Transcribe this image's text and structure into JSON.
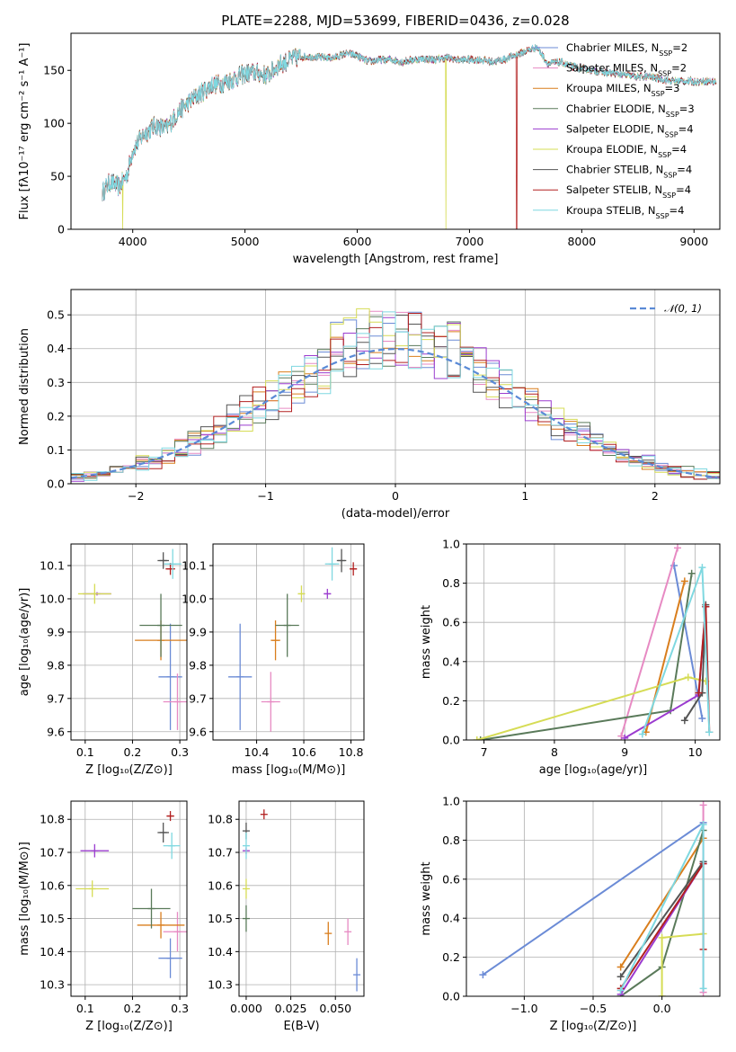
{
  "title": "PLATE=2288, MJD=53699, FIBERID=0436, z=0.028",
  "models": [
    {
      "name": "Chabrier MILES",
      "nssp": "2",
      "color": "#6b8bd6"
    },
    {
      "name": "Salpeter MILES",
      "nssp": "2",
      "color": "#e78ac3"
    },
    {
      "name": "Kroupa MILES",
      "nssp": "3",
      "color": "#d97e1d"
    },
    {
      "name": "Chabrier ELODIE",
      "nssp": "3",
      "color": "#5a7a5a"
    },
    {
      "name": "Salpeter ELODIE",
      "nssp": "4",
      "color": "#9b3ccf"
    },
    {
      "name": "Kroupa ELODIE",
      "nssp": "4",
      "color": "#d6dc55"
    },
    {
      "name": "Chabrier STELIB",
      "nssp": "4",
      "color": "#555555"
    },
    {
      "name": "Salpeter STELIB",
      "nssp": "4",
      "color": "#b22020"
    },
    {
      "name": "Kroupa STELIB",
      "nssp": "4",
      "color": "#7fd8e0"
    }
  ],
  "chart_data": [
    {
      "id": "spectrum",
      "type": "line",
      "xlabel": "wavelength [Angstrom, rest frame]",
      "ylabel": "Flux [fλ10⁻¹⁷ erg cm⁻² s⁻¹ A⁻¹]",
      "xlim": [
        3450,
        9230
      ],
      "ylim": [
        0,
        185
      ],
      "xticks": [
        4000,
        5000,
        6000,
        7000,
        8000,
        9000
      ],
      "yticks": [
        0,
        50,
        100,
        150
      ],
      "grid": false,
      "legend": "top-right",
      "continuum_points": [
        [
          3730,
          35
        ],
        [
          3800,
          45
        ],
        [
          3880,
          40
        ],
        [
          3950,
          52
        ],
        [
          4000,
          75
        ],
        [
          4100,
          90
        ],
        [
          4200,
          98
        ],
        [
          4300,
          95
        ],
        [
          4400,
          110
        ],
        [
          4500,
          120
        ],
        [
          4600,
          128
        ],
        [
          4700,
          136
        ],
        [
          4800,
          138
        ],
        [
          4900,
          142
        ],
        [
          5000,
          147
        ],
        [
          5100,
          148
        ],
        [
          5200,
          145
        ],
        [
          5300,
          155
        ],
        [
          5400,
          160
        ],
        [
          5500,
          163
        ],
        [
          5600,
          163
        ],
        [
          5700,
          162
        ],
        [
          5800,
          162
        ],
        [
          5900,
          166
        ],
        [
          6000,
          164
        ],
        [
          6100,
          158
        ],
        [
          6200,
          160
        ],
        [
          6300,
          160
        ],
        [
          6400,
          158
        ],
        [
          6500,
          160
        ],
        [
          6600,
          161
        ],
        [
          6700,
          160
        ],
        [
          6800,
          162
        ],
        [
          6900,
          160
        ],
        [
          7000,
          160
        ],
        [
          7100,
          160
        ],
        [
          7200,
          158
        ],
        [
          7300,
          160
        ],
        [
          7400,
          164
        ],
        [
          7500,
          168
        ],
        [
          7600,
          172
        ],
        [
          7700,
          156
        ],
        [
          7800,
          158
        ],
        [
          7900,
          154
        ],
        [
          8000,
          152
        ],
        [
          8100,
          150
        ],
        [
          8200,
          148
        ],
        [
          8300,
          147
        ],
        [
          8400,
          145
        ],
        [
          8500,
          144
        ],
        [
          8600,
          144
        ],
        [
          8700,
          142
        ],
        [
          8800,
          140
        ],
        [
          8900,
          140
        ],
        [
          9000,
          139
        ],
        [
          9100,
          140
        ],
        [
          9200,
          139
        ]
      ],
      "dropouts": [
        {
          "x": 3910,
          "color": "#d6dc55"
        },
        {
          "x": 6790,
          "color": "#d6dc55"
        },
        {
          "x": 7420,
          "color": "#b22020"
        }
      ]
    },
    {
      "id": "residual-hist",
      "type": "histogram",
      "xlabel": "(data-model)/error",
      "ylabel": "Normed distribution",
      "xlim": [
        -2.5,
        2.5
      ],
      "ylim": [
        0,
        0.575
      ],
      "xticks": [
        -2,
        -1,
        0,
        1,
        2
      ],
      "yticks": [
        0.0,
        0.1,
        0.2,
        0.3,
        0.4,
        0.5
      ],
      "bin_width": 0.1,
      "grid": true,
      "legend": "top-right",
      "legend_label": "𝒩(0, 1)",
      "reference_curve": {
        "mean": 0,
        "sigma": 1,
        "style": "dashed",
        "color": "#5a8ad6"
      }
    },
    {
      "id": "age-vs-Z",
      "type": "errorbar",
      "xlabel": "Z [log₁₀(Z/Z⊙)]",
      "ylabel": "age  [log₁₀(age/yr)]",
      "xlim": [
        0.07,
        0.315
      ],
      "ylim": [
        9.575,
        10.165
      ],
      "xticks": [
        0.1,
        0.2,
        0.3
      ],
      "yticks": [
        9.6,
        9.7,
        9.8,
        9.9,
        10.0,
        10.1
      ],
      "grid": true,
      "points": [
        {
          "x": 0.28,
          "y": 9.765,
          "xerr": 0.025,
          "yerr": 0.16,
          "color": "#6b8bd6"
        },
        {
          "x": 0.295,
          "y": 9.69,
          "xerr": 0.03,
          "yerr": 0.085,
          "color": "#e78ac3"
        },
        {
          "x": 0.26,
          "y": 9.875,
          "xerr": 0.055,
          "yerr": 0.06,
          "color": "#d97e1d"
        },
        {
          "x": 0.26,
          "y": 9.92,
          "xerr": 0.045,
          "yerr": 0.095,
          "color": "#5a7a5a"
        },
        {
          "x": 0.125,
          "y": 10.015,
          "xerr": 0.03,
          "yerr": 0.005,
          "color": "#9b3ccf"
        },
        {
          "x": 0.12,
          "y": 10.015,
          "xerr": 0.035,
          "yerr": 0.03,
          "color": "#d6dc55"
        },
        {
          "x": 0.265,
          "y": 10.115,
          "xerr": 0.012,
          "yerr": 0.025,
          "color": "#555555"
        },
        {
          "x": 0.28,
          "y": 10.09,
          "xerr": 0.01,
          "yerr": 0.018,
          "color": "#b22020"
        },
        {
          "x": 0.285,
          "y": 10.105,
          "xerr": 0.018,
          "yerr": 0.045,
          "color": "#7fd8e0"
        }
      ]
    },
    {
      "id": "age-vs-mass",
      "type": "errorbar",
      "xlabel": "mass [log₁₀(M/M⊙)]",
      "ylabel": "",
      "xlim": [
        10.215,
        10.855
      ],
      "ylim": [
        9.575,
        10.165
      ],
      "xticks": [
        10.4,
        10.6,
        10.8
      ],
      "yticks": [
        9.6,
        9.7,
        9.8,
        9.9,
        10.0,
        10.1
      ],
      "grid": true,
      "points": [
        {
          "x": 10.33,
          "y": 9.765,
          "xerr": 0.05,
          "yerr": 0.16,
          "color": "#6b8bd6"
        },
        {
          "x": 10.46,
          "y": 9.69,
          "xerr": 0.04,
          "yerr": 0.09,
          "color": "#e78ac3"
        },
        {
          "x": 10.48,
          "y": 9.875,
          "xerr": 0.02,
          "yerr": 0.06,
          "color": "#d97e1d"
        },
        {
          "x": 10.53,
          "y": 9.92,
          "xerr": 0.05,
          "yerr": 0.095,
          "color": "#5a7a5a"
        },
        {
          "x": 10.7,
          "y": 10.015,
          "xerr": 0.015,
          "yerr": 0.015,
          "color": "#9b3ccf"
        },
        {
          "x": 10.59,
          "y": 10.015,
          "xerr": 0.015,
          "yerr": 0.025,
          "color": "#d6dc55"
        },
        {
          "x": 10.76,
          "y": 10.115,
          "xerr": 0.02,
          "yerr": 0.035,
          "color": "#555555"
        },
        {
          "x": 10.81,
          "y": 10.09,
          "xerr": 0.015,
          "yerr": 0.02,
          "color": "#b22020"
        },
        {
          "x": 10.72,
          "y": 10.105,
          "xerr": 0.03,
          "yerr": 0.05,
          "color": "#7fd8e0"
        }
      ]
    },
    {
      "id": "massweight-vs-age",
      "type": "line",
      "xlabel": "age  [log₁₀(age/yr)]",
      "ylabel": "mass weight",
      "xlim": [
        6.75,
        10.35
      ],
      "ylim": [
        0,
        1.0
      ],
      "xticks": [
        7,
        8,
        9,
        10
      ],
      "yticks": [
        0.0,
        0.2,
        0.4,
        0.6,
        0.8,
        1.0
      ],
      "grid": true,
      "series": [
        {
          "color": "#6b8bd6",
          "points": [
            [
              9.7,
              0.89
            ],
            [
              10.1,
              0.11
            ]
          ]
        },
        {
          "color": "#e78ac3",
          "points": [
            [
              8.95,
              0.02
            ],
            [
              9.75,
              0.98
            ]
          ]
        },
        {
          "color": "#d97e1d",
          "points": [
            [
              9.3,
              0.04
            ],
            [
              9.85,
              0.81
            ]
          ]
        },
        {
          "color": "#5a7a5a",
          "points": [
            [
              6.95,
              0.0
            ],
            [
              9.65,
              0.15
            ],
            [
              9.95,
              0.85
            ]
          ]
        },
        {
          "color": "#9b3ccf",
          "points": [
            [
              9.0,
              0.01
            ],
            [
              10.05,
              0.23
            ],
            [
              10.15,
              0.68
            ]
          ]
        },
        {
          "color": "#d6dc55",
          "points": [
            [
              6.9,
              0.0
            ],
            [
              9.9,
              0.32
            ],
            [
              10.15,
              0.3
            ]
          ]
        },
        {
          "color": "#555555",
          "points": [
            [
              9.85,
              0.1
            ],
            [
              10.1,
              0.24
            ],
            [
              10.15,
              0.69
            ]
          ]
        },
        {
          "color": "#b22020",
          "points": [
            [
              10.05,
              0.24
            ],
            [
              10.15,
              0.68
            ],
            [
              10.2,
              0.04
            ]
          ]
        },
        {
          "color": "#7fd8e0",
          "points": [
            [
              9.25,
              0.03
            ],
            [
              10.1,
              0.88
            ],
            [
              10.2,
              0.04
            ]
          ]
        }
      ]
    },
    {
      "id": "mass-vs-Z",
      "type": "errorbar",
      "xlabel": "Z [log₁₀(Z/Z⊙)]",
      "ylabel": "mass [log₁₀(M/M⊙)]",
      "xlim": [
        0.07,
        0.315
      ],
      "ylim": [
        10.265,
        10.855
      ],
      "xticks": [
        0.1,
        0.2,
        0.3
      ],
      "yticks": [
        10.3,
        10.4,
        10.5,
        10.6,
        10.7,
        10.8
      ],
      "grid": true,
      "points": [
        {
          "x": 0.28,
          "y": 10.38,
          "xerr": 0.025,
          "yerr": 0.06,
          "color": "#6b8bd6"
        },
        {
          "x": 0.295,
          "y": 10.46,
          "xerr": 0.03,
          "yerr": 0.06,
          "color": "#e78ac3"
        },
        {
          "x": 0.26,
          "y": 10.48,
          "xerr": 0.05,
          "yerr": 0.04,
          "color": "#d97e1d"
        },
        {
          "x": 0.24,
          "y": 10.53,
          "xerr": 0.04,
          "yerr": 0.06,
          "color": "#5a7a5a"
        },
        {
          "x": 0.12,
          "y": 10.705,
          "xerr": 0.03,
          "yerr": 0.02,
          "color": "#9b3ccf"
        },
        {
          "x": 0.115,
          "y": 10.59,
          "xerr": 0.035,
          "yerr": 0.025,
          "color": "#d6dc55"
        },
        {
          "x": 0.265,
          "y": 10.76,
          "xerr": 0.012,
          "yerr": 0.03,
          "color": "#555555"
        },
        {
          "x": 0.28,
          "y": 10.81,
          "xerr": 0.008,
          "yerr": 0.015,
          "color": "#b22020"
        },
        {
          "x": 0.283,
          "y": 10.72,
          "xerr": 0.018,
          "yerr": 0.04,
          "color": "#7fd8e0"
        }
      ]
    },
    {
      "id": "mass-vs-ebv",
      "type": "errorbar",
      "xlabel": "E(B-V)",
      "ylabel": "",
      "xlim": [
        -0.004,
        0.066
      ],
      "ylim": [
        10.265,
        10.855
      ],
      "xticks": [
        0.0,
        0.025,
        0.05
      ],
      "yticks": [
        10.3,
        10.4,
        10.5,
        10.6,
        10.7,
        10.8
      ],
      "grid": true,
      "points": [
        {
          "x": 0.062,
          "y": 10.33,
          "xerr": 0,
          "yerr": 0.05,
          "color": "#6b8bd6"
        },
        {
          "x": 0.057,
          "y": 10.46,
          "xerr": 0,
          "yerr": 0.04,
          "color": "#e78ac3"
        },
        {
          "x": 0.046,
          "y": 10.455,
          "xerr": 0,
          "yerr": 0.035,
          "color": "#d97e1d"
        },
        {
          "x": 0.0,
          "y": 10.5,
          "xerr": 0,
          "yerr": 0.04,
          "color": "#5a7a5a"
        },
        {
          "x": 0.0,
          "y": 10.705,
          "xerr": 0,
          "yerr": 0.01,
          "color": "#9b3ccf"
        },
        {
          "x": 0.0,
          "y": 10.59,
          "xerr": 0,
          "yerr": 0.03,
          "color": "#d6dc55"
        },
        {
          "x": 0.0,
          "y": 10.765,
          "xerr": 0,
          "yerr": 0.025,
          "color": "#555555"
        },
        {
          "x": 0.01,
          "y": 10.815,
          "xerr": 0,
          "yerr": 0.015,
          "color": "#b22020"
        },
        {
          "x": 0.0,
          "y": 10.72,
          "xerr": 0,
          "yerr": 0.04,
          "color": "#7fd8e0"
        }
      ]
    },
    {
      "id": "massweight-vs-Z",
      "type": "line",
      "xlabel": "Z [log₁₀(Z/Z⊙)]",
      "ylabel": "mass weight",
      "xlim": [
        -1.42,
        0.42
      ],
      "ylim": [
        0,
        1.0
      ],
      "xticks": [
        -1.0,
        -0.5,
        0.0
      ],
      "yticks": [
        0.0,
        0.2,
        0.4,
        0.6,
        0.8,
        1.0
      ],
      "grid": true,
      "series": [
        {
          "color": "#6b8bd6",
          "points": [
            [
              -1.3,
              0.11
            ],
            [
              0.3,
              0.89
            ]
          ]
        },
        {
          "color": "#e78ac3",
          "points": [
            [
              0.3,
              0.02
            ],
            [
              0.3,
              0.98
            ]
          ]
        },
        {
          "color": "#d97e1d",
          "points": [
            [
              -0.3,
              0.15
            ],
            [
              0.3,
              0.81
            ]
          ]
        },
        {
          "color": "#5a7a5a",
          "points": [
            [
              -0.3,
              0.0
            ],
            [
              0.0,
              0.15
            ],
            [
              0.3,
              0.85
            ]
          ]
        },
        {
          "color": "#9b3ccf",
          "points": [
            [
              -0.3,
              0.01
            ],
            [
              0.3,
              0.68
            ]
          ]
        },
        {
          "color": "#d6dc55",
          "points": [
            [
              0.0,
              0.0
            ],
            [
              0.0,
              0.3
            ],
            [
              0.3,
              0.32
            ]
          ]
        },
        {
          "color": "#555555",
          "points": [
            [
              -0.3,
              0.1
            ],
            [
              0.3,
              0.69
            ]
          ]
        },
        {
          "color": "#b22020",
          "points": [
            [
              -0.3,
              0.04
            ],
            [
              0.3,
              0.68
            ],
            [
              0.3,
              0.24
            ]
          ]
        },
        {
          "color": "#7fd8e0",
          "points": [
            [
              -0.3,
              0.03
            ],
            [
              0.3,
              0.88
            ],
            [
              0.3,
              0.04
            ]
          ]
        }
      ]
    }
  ]
}
